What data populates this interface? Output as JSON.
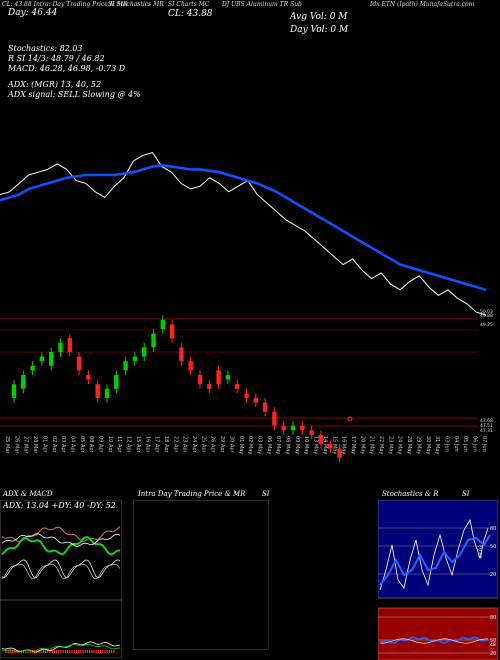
{
  "header": {
    "items": [
      {
        "text": "CL: 43.88",
        "x": 0
      },
      {
        "text": "Day: 46.44",
        "x": 1
      }
    ],
    "tiny": [
      "CL: 43.88 Intra: Day Trading Price & MR",
      "SI Stochastics MR",
      "SI Charts MC",
      "DJ UBS Aluminum TR Sub",
      "Idx ETN (Ipath) MunafaSutra.com"
    ],
    "cl_big": "CL: 43.88",
    "day_big": "Day: 46.44",
    "avg_vol": "Avg Vol: 0  M",
    "day_vol": "Day Vol: 0  M"
  },
  "indicators": [
    "Stochastics: 82.03",
    "R              SI 14/3: 48.79 / 46.82",
    "MACD: 46.28, 46.98, -0.73 D",
    "ADX:                          (MGR) 13, 40, 52",
    "ADX  signal: SELL  Slowing @ 4%"
  ],
  "price_ticks": [
    {
      "label": "50.03",
      "v": 50.03
    },
    {
      "label": "49.88",
      "v": 49.88
    },
    {
      "label": "49.25",
      "v": 49.25
    },
    {
      "label": "47.68",
      "v": 47.68
    },
    {
      "label": "47.51",
      "v": 47.51
    },
    {
      "label": "47.31",
      "v": 47.31
    }
  ],
  "dates": [
    "25 Mar",
    "26 Mar",
    "27 Mar",
    "28 Mar",
    "01 Apr",
    "02 Apr",
    "03 Apr",
    "04 Apr",
    "05 Apr",
    "08 Apr",
    "09 Apr",
    "10 Apr",
    "11 Apr",
    "12 Apr",
    "15 Apr",
    "16 Apr",
    "17 Apr",
    "18 Apr",
    "22 Apr",
    "23 Apr",
    "24 Apr",
    "25 Apr",
    "26 Apr",
    "29 Apr",
    "30 Apr",
    "01 May",
    "02 May",
    "03 May",
    "06 May",
    "07 May",
    "08 May",
    "09 May",
    "10 May",
    "13 May",
    "14 May",
    "15 May",
    "16 May",
    "17 May",
    "20 May",
    "21 May",
    "22 May",
    "23 May",
    "24 May",
    "28 May",
    "29 May",
    "30 May",
    "31 May",
    "03 Jun",
    "04 Jun",
    "05 Jun",
    "06 Jun",
    "07 Jun"
  ],
  "panels": {
    "adx_title": "ADX  & MACD",
    "adx_values": "ADX: 13.04  +DY: 40  -DY: 52",
    "intra_title": "Intra  Day Trading Price  & MR",
    "intra_si": "SI",
    "stoch_title": "Stochastics & R",
    "stoch_si": "SI",
    "stoch_labels": [
      "80",
      "50",
      "20"
    ],
    "stoch_value": "82.03",
    "rsi_labels": [
      "80",
      "50",
      "20"
    ],
    "rsi_value": "48"
  },
  "colors": {
    "up": "#00cc00",
    "down": "#ff2222",
    "ma": "#1050ff",
    "grid": "#8b0000"
  },
  "chart_data": {
    "type": "line",
    "series": [
      {
        "values": [
          48.2,
          48.3,
          48.6,
          48.9,
          49.0,
          49.1,
          49.3,
          49.1,
          48.7,
          48.6,
          48.3,
          48.1,
          48.5,
          48.8,
          49.4,
          49.6,
          49.7,
          49.2,
          49.0,
          48.6,
          48.4,
          48.5,
          48.8,
          48.6,
          48.3,
          48.5,
          48.7,
          48.2,
          47.9,
          47.6,
          47.3,
          47.1,
          46.9,
          46.6,
          46.3,
          46.0,
          45.7,
          45.9,
          45.5,
          45.2,
          45.4,
          45.0,
          44.8,
          45.1,
          45.3,
          44.9,
          44.6,
          44.8,
          44.5,
          44.3,
          44.0,
          43.9
        ]
      },
      {
        "values": [
          48.0,
          48.1,
          48.2,
          48.4,
          48.5,
          48.6,
          48.7,
          48.8,
          48.85,
          48.9,
          48.9,
          48.9,
          48.9,
          48.95,
          49.0,
          49.1,
          49.2,
          49.25,
          49.2,
          49.15,
          49.1,
          49.1,
          49.05,
          49.0,
          48.9,
          48.8,
          48.7,
          48.6,
          48.45,
          48.3,
          48.1,
          47.9,
          47.7,
          47.5,
          47.3,
          47.1,
          46.9,
          46.7,
          46.5,
          46.3,
          46.1,
          45.9,
          45.7,
          45.6,
          45.5,
          45.4,
          45.3,
          45.2,
          45.1,
          45.0,
          44.9,
          44.8
        ]
      }
    ],
    "candles": [
      {
        "o": 48.3,
        "c": 48.6,
        "h": 48.7,
        "l": 48.2
      },
      {
        "o": 48.5,
        "c": 48.8,
        "h": 48.9,
        "l": 48.4
      },
      {
        "o": 48.9,
        "c": 49.0,
        "h": 49.1,
        "l": 48.8
      },
      {
        "o": 49.1,
        "c": 49.2,
        "h": 49.3,
        "l": 49.0
      },
      {
        "o": 49.0,
        "c": 49.3,
        "h": 49.4,
        "l": 48.9
      },
      {
        "o": 49.3,
        "c": 49.5,
        "h": 49.6,
        "l": 49.2
      },
      {
        "o": 49.6,
        "c": 49.3,
        "h": 49.7,
        "l": 49.2
      },
      {
        "o": 49.2,
        "c": 48.9,
        "h": 49.3,
        "l": 48.8
      },
      {
        "o": 48.8,
        "c": 48.7,
        "h": 48.9,
        "l": 48.6
      },
      {
        "o": 48.6,
        "c": 48.3,
        "h": 48.7,
        "l": 48.2
      },
      {
        "o": 48.3,
        "c": 48.5,
        "h": 48.6,
        "l": 48.2
      },
      {
        "o": 48.5,
        "c": 48.8,
        "h": 48.9,
        "l": 48.4
      },
      {
        "o": 48.9,
        "c": 49.1,
        "h": 49.2,
        "l": 48.8
      },
      {
        "o": 49.1,
        "c": 49.2,
        "h": 49.3,
        "l": 49.0
      },
      {
        "o": 49.2,
        "c": 49.4,
        "h": 49.5,
        "l": 49.1
      },
      {
        "o": 49.4,
        "c": 49.7,
        "h": 49.8,
        "l": 49.3
      },
      {
        "o": 49.8,
        "c": 50.0,
        "h": 50.1,
        "l": 49.7
      },
      {
        "o": 49.9,
        "c": 49.6,
        "h": 50.0,
        "l": 49.5
      },
      {
        "o": 49.4,
        "c": 49.1,
        "h": 49.5,
        "l": 49.0
      },
      {
        "o": 49.1,
        "c": 48.9,
        "h": 49.2,
        "l": 48.8
      },
      {
        "o": 48.8,
        "c": 48.6,
        "h": 48.9,
        "l": 48.5
      },
      {
        "o": 48.6,
        "c": 48.5,
        "h": 48.7,
        "l": 48.4
      },
      {
        "o": 48.9,
        "c": 48.6,
        "h": 49.0,
        "l": 48.5
      },
      {
        "o": 48.7,
        "c": 48.8,
        "h": 48.9,
        "l": 48.6
      },
      {
        "o": 48.6,
        "c": 48.5,
        "h": 48.7,
        "l": 48.4
      },
      {
        "o": 48.4,
        "c": 48.3,
        "h": 48.5,
        "l": 48.2
      },
      {
        "o": 48.3,
        "c": 48.2,
        "h": 48.4,
        "l": 48.1
      },
      {
        "o": 48.2,
        "c": 48.0,
        "h": 48.3,
        "l": 47.9
      },
      {
        "o": 48.0,
        "c": 47.7,
        "h": 48.1,
        "l": 47.6
      },
      {
        "o": 47.7,
        "c": 47.6,
        "h": 47.8,
        "l": 47.5
      },
      {
        "o": 47.6,
        "c": 47.7,
        "h": 47.8,
        "l": 47.5
      },
      {
        "o": 47.7,
        "c": 47.6,
        "h": 47.8,
        "l": 47.5
      },
      {
        "o": 47.6,
        "c": 47.5,
        "h": 47.7,
        "l": 47.4
      },
      {
        "o": 47.5,
        "c": 47.3,
        "h": 47.6,
        "l": 47.2
      },
      {
        "o": 47.3,
        "c": 47.2,
        "h": 47.4,
        "l": 47.1
      },
      {
        "o": 47.2,
        "c": 47.0,
        "h": 47.3,
        "l": 46.9
      }
    ]
  }
}
